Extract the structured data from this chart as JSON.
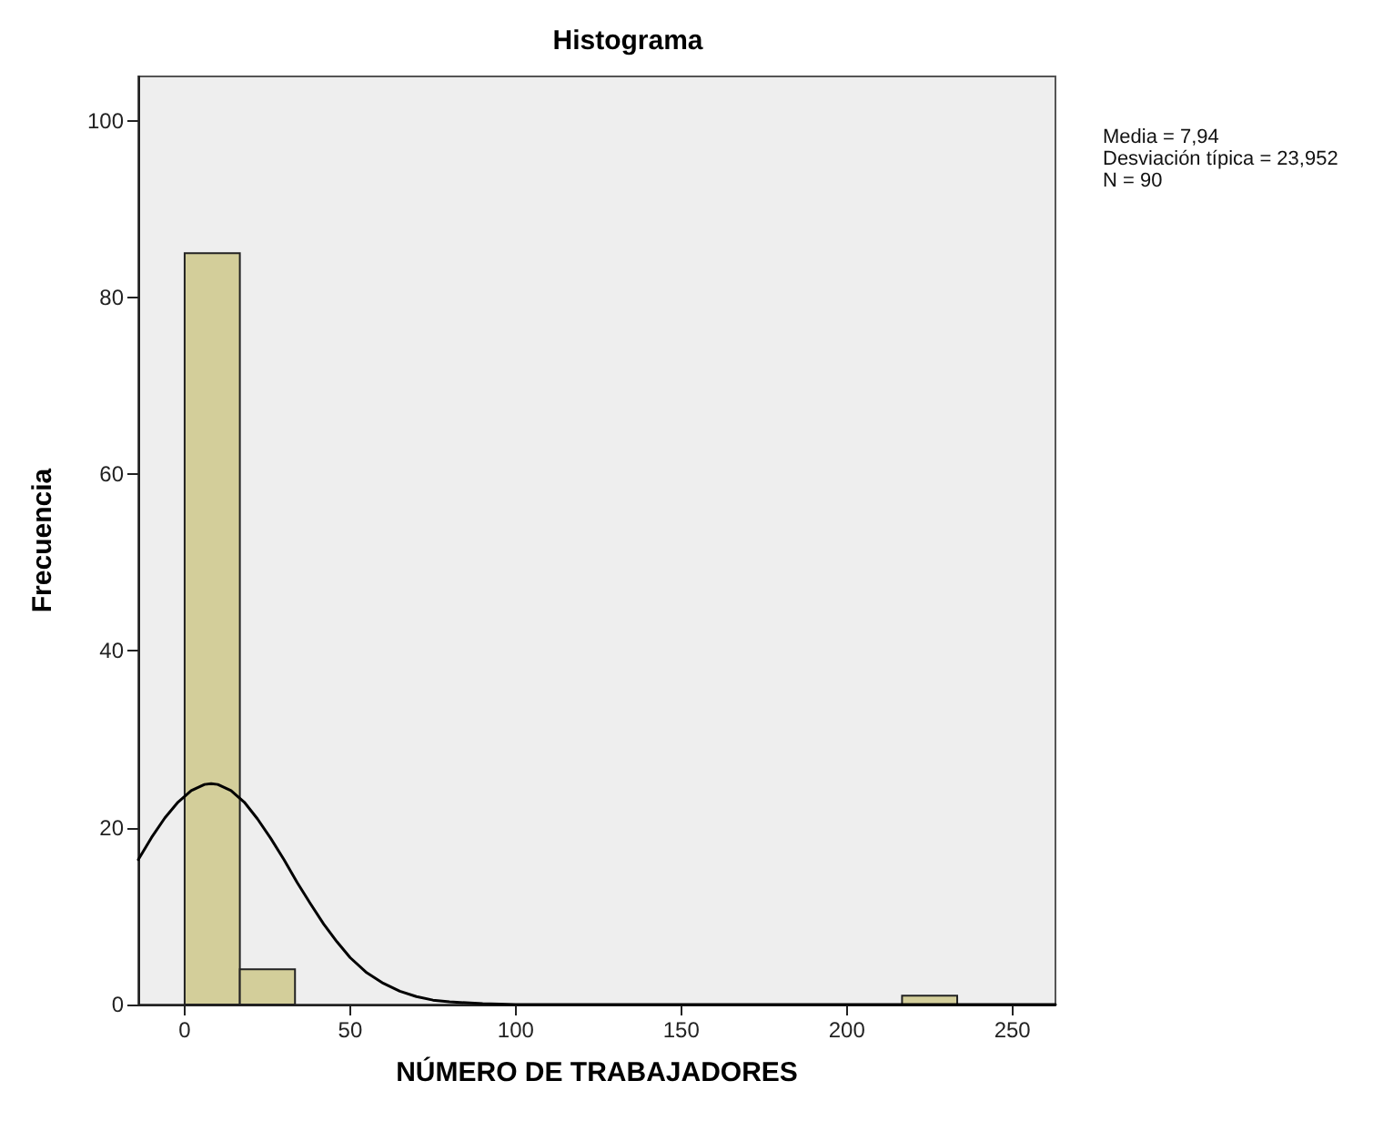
{
  "chart_data": {
    "type": "histogram",
    "title": "Histograma",
    "xlabel": "NÚMERO DE TRABAJADORES",
    "ylabel": "Frecuencia",
    "annotations": [
      "Media = 7,94",
      "Desviación típica = 23,952",
      "N = 90"
    ],
    "bins": [
      0,
      16.67,
      33.33,
      50,
      66.67,
      83.33,
      100,
      116.67,
      133.33,
      150,
      166.67,
      183.33,
      200,
      216.67,
      233.33
    ],
    "series": [
      {
        "color": "#d3ce9a",
        "values": [
          85,
          4,
          0,
          0,
          0,
          0,
          0,
          0,
          0,
          0,
          0,
          0,
          0,
          1
        ]
      },
      {
        "type": "line",
        "color": "#000000",
        "x": [
          -14,
          -10,
          -6,
          -2,
          2,
          6,
          8,
          10,
          14,
          18,
          22,
          26,
          30,
          34,
          38,
          42,
          46,
          50,
          55,
          60,
          65,
          70,
          75,
          80,
          90,
          100,
          263
        ],
        "values": [
          16.4,
          18.9,
          21.1,
          22.9,
          24.2,
          24.9,
          25,
          24.9,
          24.2,
          22.9,
          21.0,
          18.8,
          16.4,
          13.8,
          11.4,
          9.1,
          7.1,
          5.3,
          3.6,
          2.4,
          1.5,
          0.9,
          0.5,
          0.3,
          0.1,
          0,
          0
        ]
      }
    ],
    "marker": "none",
    "line_style": "solid",
    "grid": false,
    "xlim": [
      -14,
      263
    ],
    "xticks": [
      0,
      50,
      100,
      150,
      200,
      250
    ],
    "ylim": [
      0,
      105
    ],
    "yticks": [
      0,
      20,
      40,
      60,
      80,
      100
    ]
  }
}
